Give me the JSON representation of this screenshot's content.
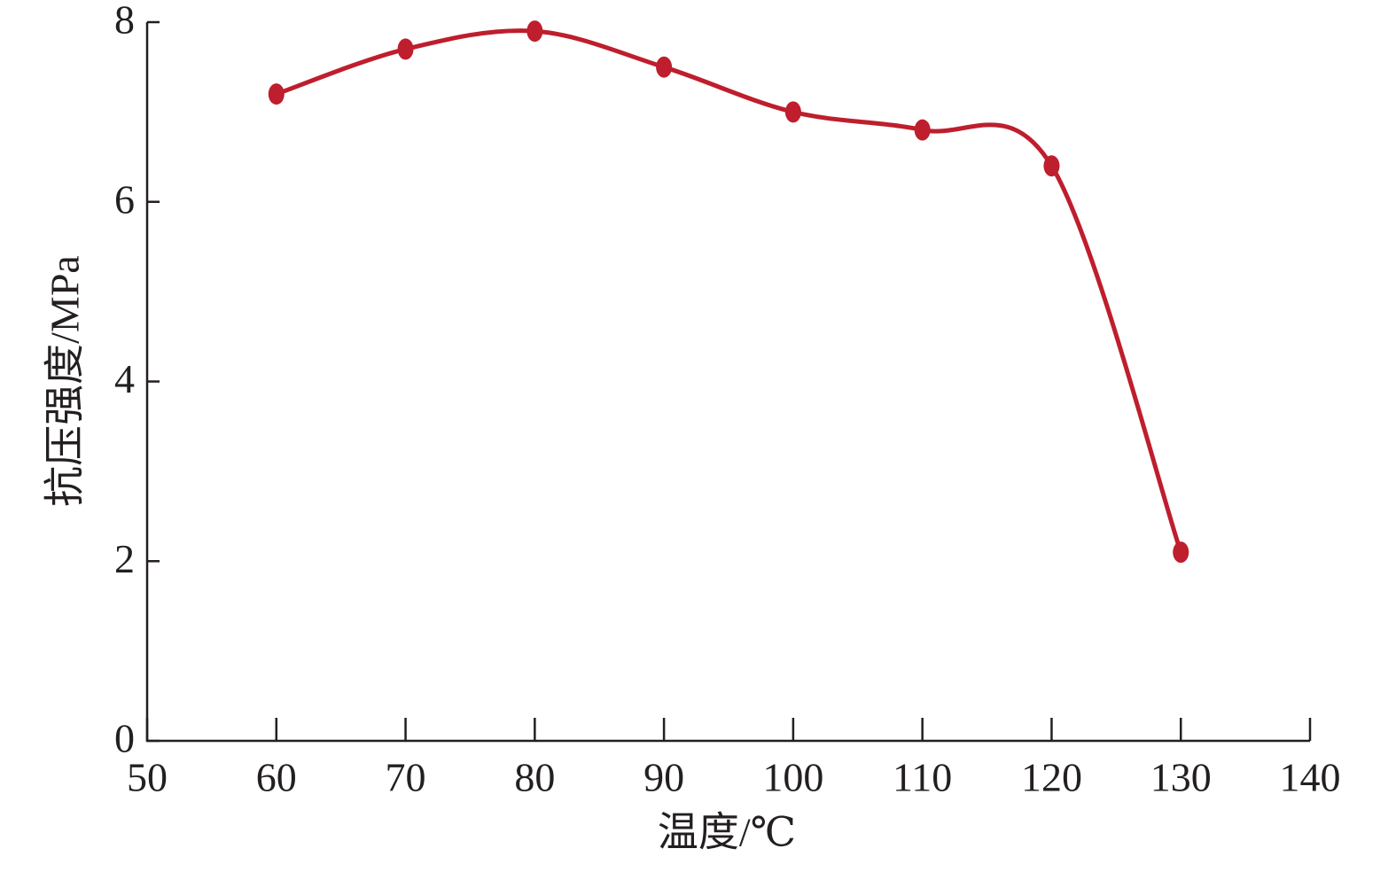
{
  "chart_data": {
    "type": "line",
    "x_label": "温度/℃",
    "y_label": "抗压强度/MPa",
    "x": [
      60,
      70,
      80,
      90,
      100,
      110,
      120,
      130
    ],
    "series": [
      {
        "color": "#be1e2d",
        "values": [
          7.2,
          7.7,
          7.9,
          7.5,
          7.0,
          6.8,
          6.4,
          2.1
        ]
      }
    ],
    "xlim": [
      50,
      140
    ],
    "xticks": [
      50,
      60,
      70,
      80,
      90,
      100,
      110,
      120,
      130,
      140
    ],
    "ylim": [
      0,
      8
    ],
    "yticks": [
      0,
      2,
      4,
      6,
      8
    ],
    "smooth": true
  }
}
